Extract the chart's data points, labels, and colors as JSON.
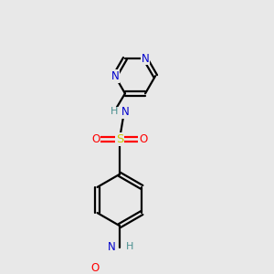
{
  "background_color": "#e8e8e8",
  "atom_colors": {
    "N": "#0000cc",
    "O": "#ff0000",
    "S": "#cccc00",
    "C": "#000000",
    "H": "#4a9090"
  },
  "bond_color": "#000000",
  "bond_width": 1.6,
  "font_size_atom": 8.5
}
